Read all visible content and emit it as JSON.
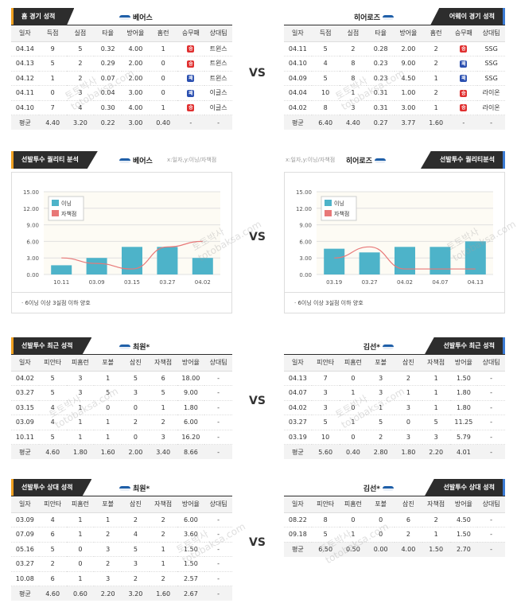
{
  "vs_label": "VS",
  "sec1": {
    "left": {
      "title": "홈 경기 성적",
      "team": "베어스",
      "headers": [
        "일자",
        "득점",
        "실점",
        "타율",
        "방어율",
        "홈런",
        "승무패",
        "상대팀"
      ],
      "rows": [
        [
          "04.14",
          "9",
          "5",
          "0.32",
          "4.00",
          "1",
          "W",
          "트윈스"
        ],
        [
          "04.13",
          "5",
          "2",
          "0.29",
          "2.00",
          "0",
          "W",
          "트윈스"
        ],
        [
          "04.12",
          "1",
          "2",
          "0.07",
          "2.00",
          "0",
          "L",
          "트윈스"
        ],
        [
          "04.11",
          "0",
          "3",
          "0.04",
          "3.00",
          "0",
          "L",
          "이글스"
        ],
        [
          "04.10",
          "7",
          "4",
          "0.30",
          "4.00",
          "1",
          "W",
          "이글스"
        ]
      ],
      "avg": [
        "평균",
        "4.40",
        "3.20",
        "0.22",
        "3.00",
        "0.40",
        "-",
        "-"
      ]
    },
    "right": {
      "title": "어웨이 경기 성적",
      "team": "히어로즈",
      "headers": [
        "일자",
        "득점",
        "실점",
        "타율",
        "방어율",
        "홈런",
        "승무패",
        "상대팀"
      ],
      "rows": [
        [
          "04.11",
          "5",
          "2",
          "0.28",
          "2.00",
          "2",
          "W",
          "SSG"
        ],
        [
          "04.10",
          "4",
          "8",
          "0.23",
          "9.00",
          "2",
          "L",
          "SSG"
        ],
        [
          "04.09",
          "5",
          "8",
          "0.23",
          "4.50",
          "1",
          "L",
          "SSG"
        ],
        [
          "04.04",
          "10",
          "1",
          "0.31",
          "1.00",
          "2",
          "W",
          "라이온"
        ],
        [
          "04.02",
          "8",
          "3",
          "0.31",
          "3.00",
          "1",
          "W",
          "라이온"
        ]
      ],
      "avg": [
        "평균",
        "6.40",
        "4.40",
        "0.27",
        "3.77",
        "1.60",
        "-",
        "-"
      ]
    },
    "result_badges": {
      "W": "승",
      "L": "패"
    }
  },
  "sec2": {
    "left": {
      "title": "선발투수 퀄리티 분석",
      "team": "베어스",
      "sub": "x:일자,y:이닝/자책점",
      "note": "· 6이닝 이상 3실점 이하 양호"
    },
    "right": {
      "title": "선발투수 퀄리티분석",
      "team": "히어로즈",
      "sub": "x:일자,y:이닝/자책점",
      "note": "· 6이닝 이상 3실점 이하 양호"
    }
  },
  "chart_data": [
    {
      "type": "bar",
      "categories": [
        "10.11",
        "03.09",
        "03.15",
        "03.27",
        "04.02"
      ],
      "series": [
        {
          "name": "이닝",
          "type": "bar",
          "values": [
            1.67,
            3.0,
            5.0,
            5.0,
            3.0
          ],
          "color": "#4db3c9"
        },
        {
          "name": "자책점",
          "type": "line",
          "values": [
            3,
            2,
            1,
            5,
            6
          ],
          "color": "#e87878"
        }
      ],
      "yticks": [
        "0.00",
        "3.00",
        "6.00",
        "9.00",
        "12.00",
        "15.00"
      ],
      "ylim": [
        0,
        15
      ]
    },
    {
      "type": "bar",
      "categories": [
        "03.19",
        "03.27",
        "04.02",
        "04.07",
        "04.13"
      ],
      "series": [
        {
          "name": "이닝",
          "type": "bar",
          "values": [
            4.67,
            4.0,
            5.0,
            5.0,
            6.0
          ],
          "color": "#4db3c9"
        },
        {
          "name": "자책점",
          "type": "line",
          "values": [
            3,
            5,
            1,
            1,
            1
          ],
          "color": "#e87878"
        }
      ],
      "yticks": [
        "0.00",
        "3.00",
        "6.00",
        "9.00",
        "12.00",
        "15.00"
      ],
      "ylim": [
        0,
        15
      ]
    }
  ],
  "sec3": {
    "left": {
      "title": "선발투수 최근 성적",
      "team": "최원*",
      "headers": [
        "일자",
        "피안타",
        "피홈런",
        "포볼",
        "삼진",
        "자책점",
        "방어율",
        "상대팀"
      ],
      "rows": [
        [
          "04.02",
          "5",
          "3",
          "1",
          "5",
          "6",
          "18.00",
          "-"
        ],
        [
          "03.27",
          "5",
          "3",
          "5",
          "3",
          "5",
          "9.00",
          "-"
        ],
        [
          "03.15",
          "4",
          "1",
          "0",
          "0",
          "1",
          "1.80",
          "-"
        ],
        [
          "03.09",
          "4",
          "1",
          "1",
          "2",
          "2",
          "6.00",
          "-"
        ],
        [
          "10.11",
          "5",
          "1",
          "1",
          "0",
          "3",
          "16.20",
          "-"
        ]
      ],
      "avg": [
        "평균",
        "4.60",
        "1.80",
        "1.60",
        "2.00",
        "3.40",
        "8.66",
        "-"
      ]
    },
    "right": {
      "title": "선발투수 최근 성적",
      "team": "김선*",
      "headers": [
        "일자",
        "피안타",
        "피홈런",
        "포볼",
        "삼진",
        "자책점",
        "방어율",
        "상대팀"
      ],
      "rows": [
        [
          "04.13",
          "7",
          "0",
          "3",
          "2",
          "1",
          "1.50",
          "-"
        ],
        [
          "04.07",
          "3",
          "1",
          "3",
          "1",
          "1",
          "1.80",
          "-"
        ],
        [
          "04.02",
          "3",
          "0",
          "1",
          "3",
          "1",
          "1.80",
          "-"
        ],
        [
          "03.27",
          "5",
          "1",
          "5",
          "0",
          "5",
          "11.25",
          "-"
        ],
        [
          "03.19",
          "10",
          "0",
          "2",
          "3",
          "3",
          "5.79",
          "-"
        ]
      ],
      "avg": [
        "평균",
        "5.60",
        "0.40",
        "2.80",
        "1.80",
        "2.20",
        "4.01",
        "-"
      ]
    }
  },
  "sec4": {
    "left": {
      "title": "선발투수 상대 성적",
      "team": "최원*",
      "headers": [
        "일자",
        "피안타",
        "피홈런",
        "포볼",
        "삼진",
        "자책점",
        "방어율",
        "상대팀"
      ],
      "rows": [
        [
          "03.09",
          "4",
          "1",
          "1",
          "2",
          "2",
          "6.00",
          "-"
        ],
        [
          "07.09",
          "6",
          "1",
          "2",
          "4",
          "2",
          "3.60",
          "-"
        ],
        [
          "05.16",
          "5",
          "0",
          "3",
          "5",
          "1",
          "1.50",
          "-"
        ],
        [
          "03.27",
          "2",
          "0",
          "2",
          "3",
          "1",
          "1.50",
          "-"
        ],
        [
          "10.08",
          "6",
          "1",
          "3",
          "2",
          "2",
          "2.57",
          "-"
        ]
      ],
      "avg": [
        "평균",
        "4.60",
        "0.60",
        "2.20",
        "3.20",
        "1.60",
        "2.67",
        "-"
      ]
    },
    "right": {
      "title": "선발투수 상대 성적",
      "team": "김선*",
      "headers": [
        "일자",
        "피안타",
        "피홈런",
        "포볼",
        "삼진",
        "자책점",
        "방어율",
        "상대팀"
      ],
      "rows": [
        [
          "08.22",
          "8",
          "0",
          "0",
          "6",
          "2",
          "4.50",
          "-"
        ],
        [
          "09.18",
          "5",
          "1",
          "0",
          "2",
          "1",
          "1.50",
          "-"
        ]
      ],
      "avg": [
        "평균",
        "6.50",
        "0.50",
        "0.00",
        "4.00",
        "1.50",
        "2.70",
        "-"
      ]
    }
  },
  "watermark": [
    "토토박사",
    "totobaksa.com"
  ]
}
